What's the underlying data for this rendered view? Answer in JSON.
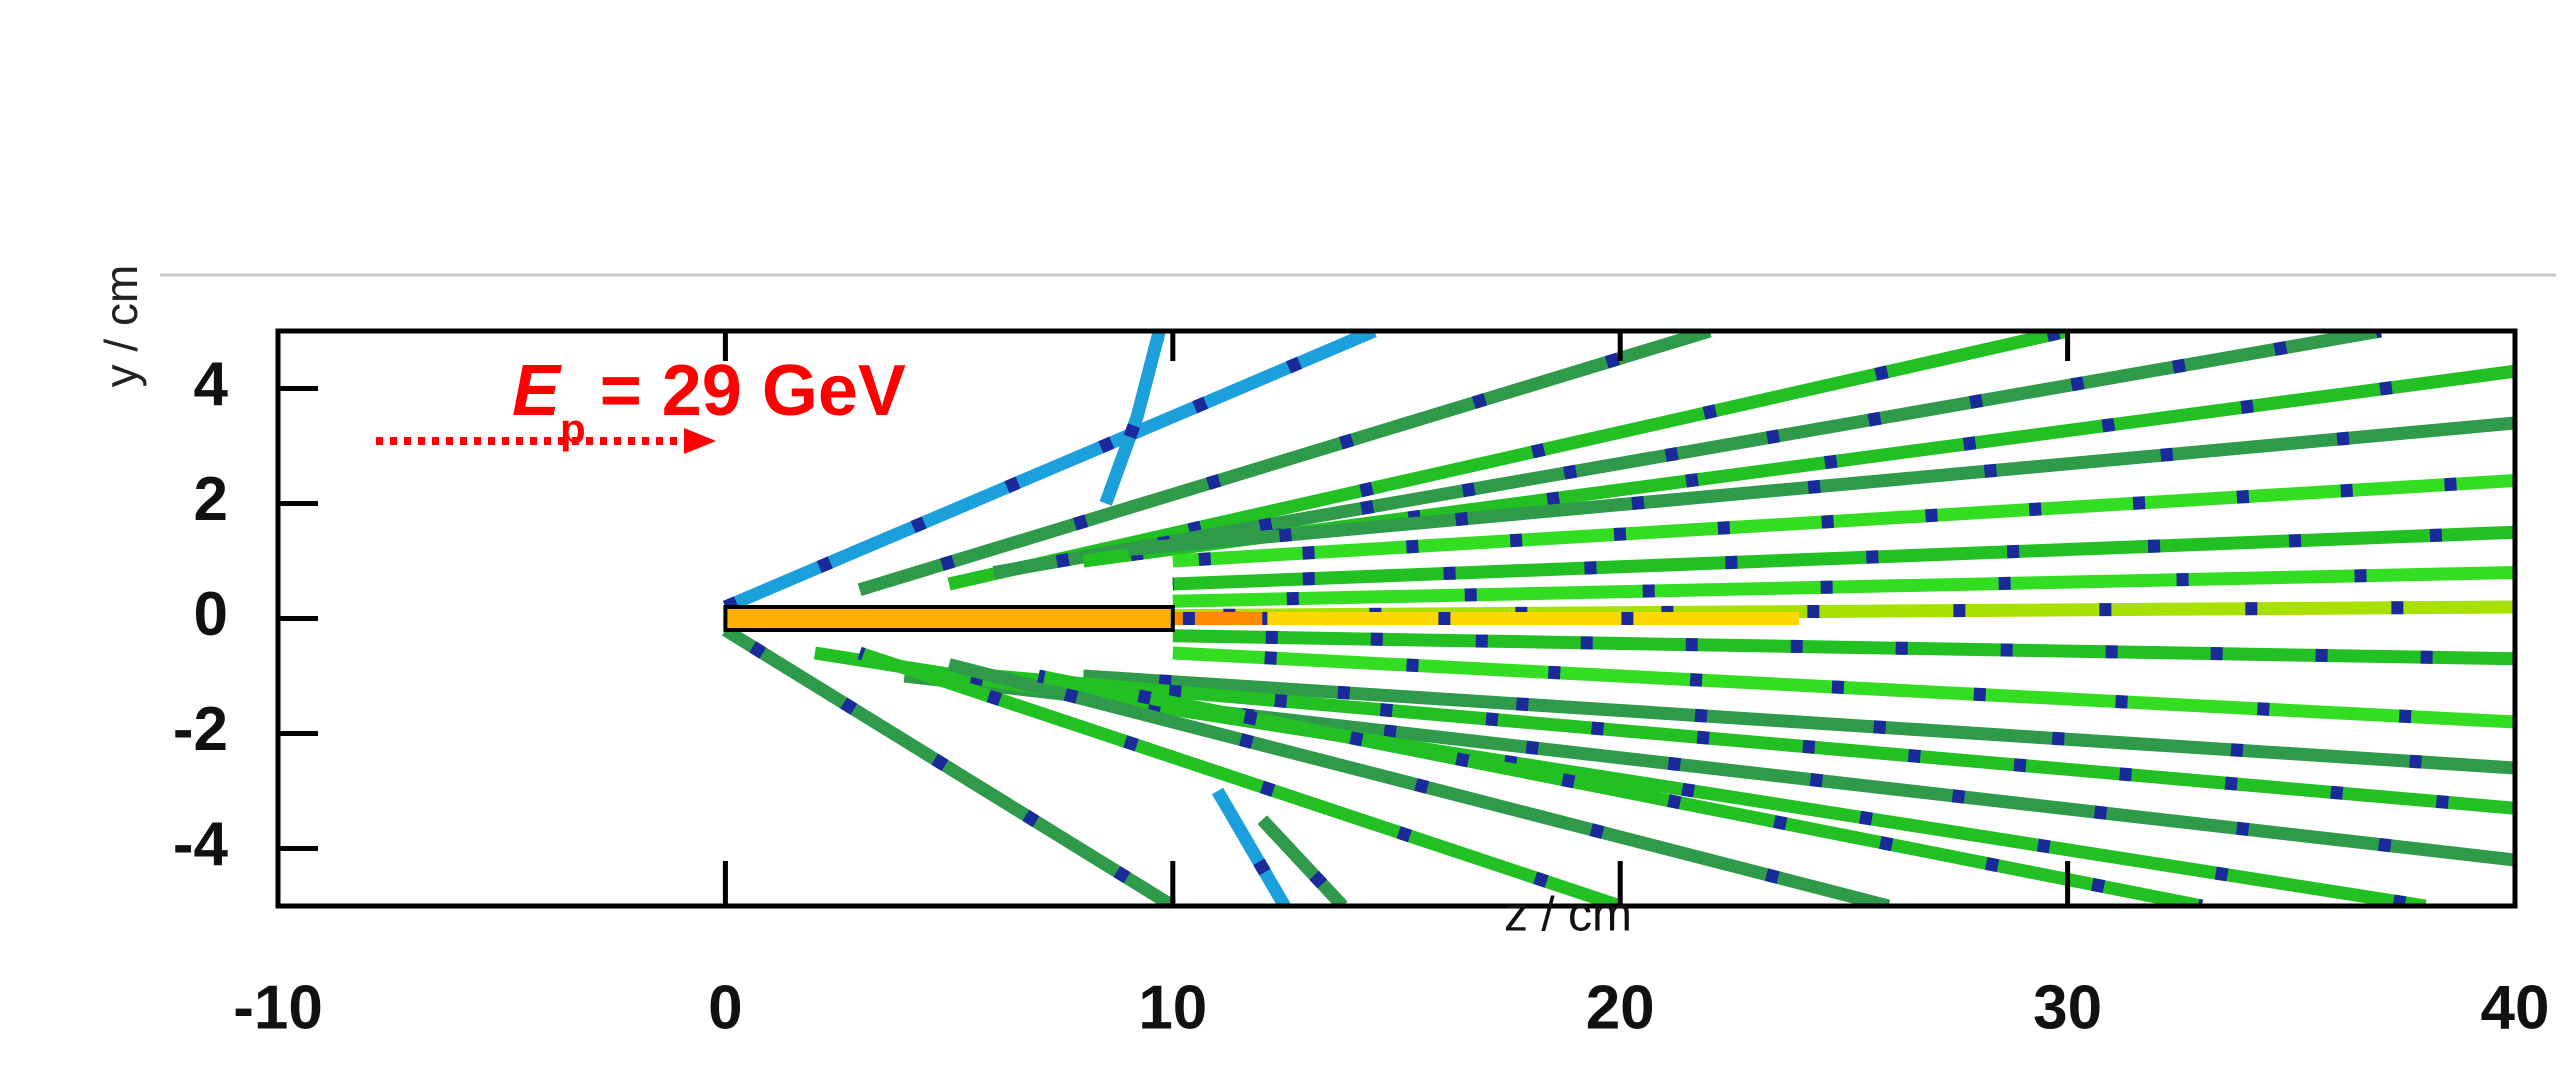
{
  "chart_data": {
    "type": "tracks",
    "xlabel": "z / cm",
    "ylabel": "y / cm",
    "annotation": {
      "symbol": "E",
      "subscript": "p",
      "text": "= 29 GeV",
      "color": "#ff0000"
    },
    "xlim": [
      -10,
      40
    ],
    "ylim": [
      -5,
      5
    ],
    "xticks": [
      -10,
      0,
      10,
      20,
      30,
      40
    ],
    "yticks": [
      -4,
      -2,
      0,
      2,
      4
    ],
    "target": {
      "z": [
        0,
        10
      ],
      "y": [
        -0.2,
        0.2
      ],
      "color": "#ffb000"
    },
    "tracks": [
      {
        "color": "#1ca0dc",
        "x": [
          0,
          14.5
        ],
        "values": [
          0.2,
          5
        ]
      },
      {
        "color": "#2e9a4a",
        "x": [
          3,
          22
        ],
        "values": [
          0.5,
          5
        ]
      },
      {
        "color": "#22c022",
        "x": [
          5,
          30
        ],
        "values": [
          0.6,
          5
        ]
      },
      {
        "color": "#2e9a4a",
        "x": [
          6,
          37
        ],
        "values": [
          0.8,
          5
        ]
      },
      {
        "color": "#22c022",
        "x": [
          8,
          40
        ],
        "values": [
          1,
          4.3
        ]
      },
      {
        "color": "#2e9a4a",
        "x": [
          9,
          40
        ],
        "values": [
          1.2,
          3.4
        ]
      },
      {
        "color": "#33dd22",
        "x": [
          10,
          40
        ],
        "values": [
          1,
          2.4
        ]
      },
      {
        "color": "#22c022",
        "x": [
          10,
          40
        ],
        "values": [
          0.6,
          1.5
        ]
      },
      {
        "color": "#33dd22",
        "x": [
          10,
          40
        ],
        "values": [
          0.3,
          0.8
        ]
      },
      {
        "color": "#22c022",
        "x": [
          10,
          40
        ],
        "values": [
          -0.3,
          -0.7
        ]
      },
      {
        "color": "#33dd22",
        "x": [
          10,
          40
        ],
        "values": [
          -0.6,
          -1.8
        ]
      },
      {
        "color": "#2e9a4a",
        "x": [
          8,
          40
        ],
        "values": [
          -1,
          -2.6
        ]
      },
      {
        "color": "#22c022",
        "x": [
          6,
          40
        ],
        "values": [
          -1,
          -3.3
        ]
      },
      {
        "color": "#2e9a4a",
        "x": [
          4,
          40
        ],
        "values": [
          -1,
          -4.2
        ]
      },
      {
        "color": "#22c022",
        "x": [
          2,
          38
        ],
        "values": [
          -0.6,
          -5
        ]
      },
      {
        "color": "#2e9a4a",
        "x": [
          0,
          10
        ],
        "values": [
          -0.2,
          -5
        ]
      },
      {
        "color": "#22c022",
        "x": [
          3,
          20
        ],
        "values": [
          -0.6,
          -5
        ]
      },
      {
        "color": "#2e9a4a",
        "x": [
          5,
          26
        ],
        "values": [
          -0.8,
          -5
        ]
      },
      {
        "color": "#22c022",
        "x": [
          7,
          33
        ],
        "values": [
          -1,
          -5
        ]
      },
      {
        "color": "#1ca0dc",
        "x": [
          9.7,
          9.2,
          8.5
        ],
        "values": [
          5,
          3.5,
          2
        ]
      },
      {
        "color": "#1ca0dc",
        "x": [
          11,
          12.5
        ],
        "values": [
          -3,
          -5
        ]
      },
      {
        "color": "#2e9a4a",
        "x": [
          12,
          13.8
        ],
        "values": [
          -3.5,
          -5
        ]
      },
      {
        "color": "#a8e000",
        "x": [
          0,
          40
        ],
        "values": [
          0,
          0.2
        ]
      },
      {
        "color": "#ffd700",
        "x": [
          0,
          24
        ],
        "values": [
          0,
          0
        ]
      },
      {
        "color": "#ff8c00",
        "x": [
          2,
          12
        ],
        "values": [
          0,
          0
        ]
      }
    ]
  }
}
